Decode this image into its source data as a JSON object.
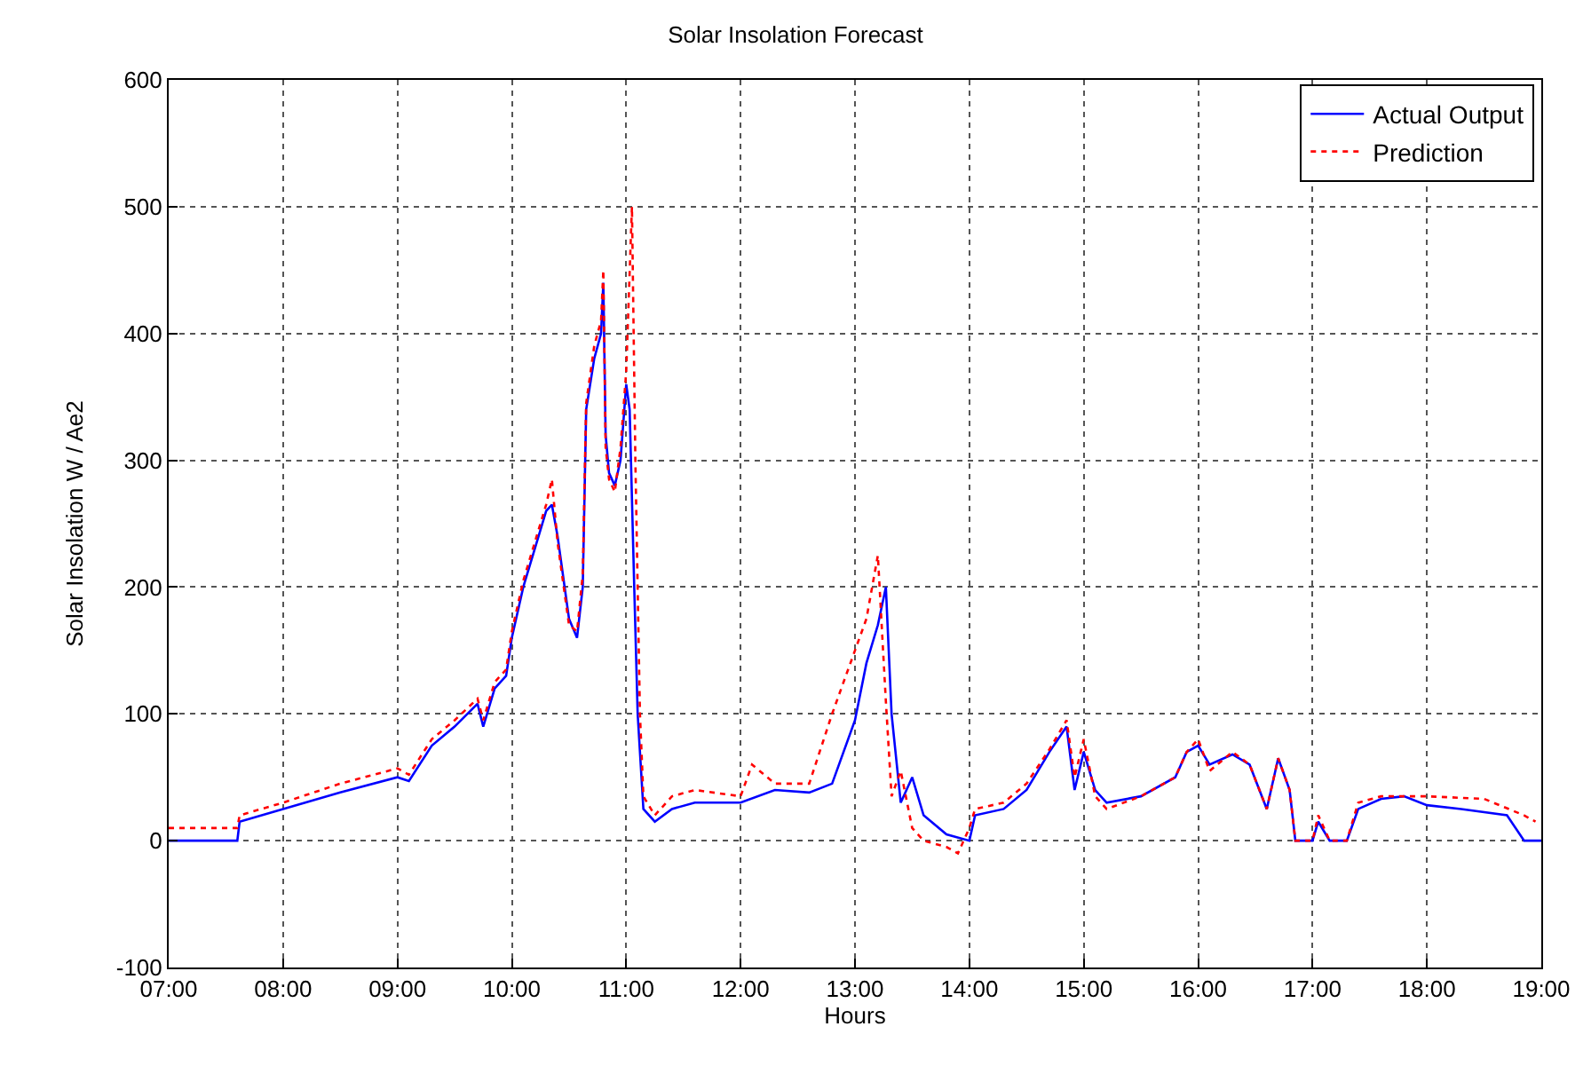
{
  "chart_data": {
    "type": "line",
    "title": "Solar Insolation Forecast",
    "xlabel": "Hours",
    "ylabel": "Solar Insolation W / Ae2",
    "xlim": [
      7,
      19
    ],
    "xticks": [
      {
        "value": 7,
        "label": "07:00"
      },
      {
        "value": 8,
        "label": "08:00"
      },
      {
        "value": 9,
        "label": "09:00"
      },
      {
        "value": 10,
        "label": "10:00"
      },
      {
        "value": 11,
        "label": "11:00"
      },
      {
        "value": 12,
        "label": "12:00"
      },
      {
        "value": 13,
        "label": "13:00"
      },
      {
        "value": 14,
        "label": "14:00"
      },
      {
        "value": 15,
        "label": "15:00"
      },
      {
        "value": 16,
        "label": "16:00"
      },
      {
        "value": 17,
        "label": "17:00"
      },
      {
        "value": 18,
        "label": "18:00"
      },
      {
        "value": 19,
        "label": "19:00"
      }
    ],
    "ylim": [
      -100,
      600
    ],
    "yticks": [
      -100,
      0,
      100,
      200,
      300,
      400,
      500,
      600
    ],
    "grid": true,
    "legend": "top right",
    "marker": "none",
    "series": [
      {
        "name": "Actual Output",
        "color": "#0000ff",
        "line_style": "solid",
        "x": [
          7.0,
          7.6,
          7.62,
          8.0,
          8.5,
          9.0,
          9.1,
          9.3,
          9.5,
          9.7,
          9.75,
          9.85,
          9.95,
          10.0,
          10.1,
          10.2,
          10.3,
          10.35,
          10.4,
          10.5,
          10.57,
          10.62,
          10.65,
          10.72,
          10.78,
          10.8,
          10.82,
          10.85,
          10.9,
          10.95,
          11.0,
          11.03,
          11.07,
          11.1,
          11.15,
          11.25,
          11.4,
          11.6,
          12.0,
          12.3,
          12.6,
          12.8,
          13.0,
          13.1,
          13.2,
          13.27,
          13.32,
          13.4,
          13.5,
          13.6,
          13.8,
          14.0,
          14.05,
          14.3,
          14.5,
          14.7,
          14.85,
          14.92,
          15.0,
          15.1,
          15.2,
          15.5,
          15.8,
          15.9,
          16.0,
          16.1,
          16.3,
          16.45,
          16.6,
          16.7,
          16.8,
          16.85,
          17.0,
          17.05,
          17.15,
          17.3,
          17.4,
          17.6,
          17.8,
          18.0,
          18.3,
          18.7,
          18.85,
          19.0
        ],
        "values": [
          0,
          0,
          15,
          25,
          38,
          50,
          47,
          75,
          90,
          108,
          90,
          120,
          130,
          160,
          200,
          230,
          260,
          265,
          240,
          175,
          160,
          200,
          340,
          380,
          400,
          440,
          320,
          290,
          280,
          300,
          360,
          340,
          200,
          100,
          25,
          15,
          25,
          30,
          30,
          40,
          38,
          45,
          95,
          140,
          170,
          200,
          100,
          30,
          50,
          20,
          5,
          0,
          20,
          25,
          40,
          70,
          90,
          40,
          70,
          40,
          30,
          35,
          50,
          70,
          75,
          60,
          68,
          60,
          25,
          65,
          40,
          0,
          0,
          15,
          0,
          0,
          25,
          33,
          35,
          28,
          25,
          20,
          0,
          0
        ]
      },
      {
        "name": "Prediction",
        "color": "#ff0000",
        "line_style": "dotted",
        "x": [
          7.0,
          7.6,
          7.62,
          8.0,
          8.5,
          9.0,
          9.1,
          9.3,
          9.5,
          9.7,
          9.75,
          9.85,
          9.95,
          10.0,
          10.1,
          10.2,
          10.3,
          10.35,
          10.4,
          10.5,
          10.57,
          10.62,
          10.65,
          10.72,
          10.78,
          10.8,
          10.82,
          10.85,
          10.9,
          10.95,
          11.0,
          11.05,
          11.08,
          11.12,
          11.15,
          11.25,
          11.4,
          11.6,
          12.0,
          12.1,
          12.3,
          12.6,
          12.8,
          13.0,
          13.1,
          13.2,
          13.27,
          13.32,
          13.4,
          13.5,
          13.6,
          13.8,
          13.9,
          14.0,
          14.05,
          14.3,
          14.5,
          14.7,
          14.85,
          14.92,
          15.0,
          15.1,
          15.2,
          15.5,
          15.8,
          15.9,
          16.0,
          16.1,
          16.3,
          16.45,
          16.6,
          16.7,
          16.8,
          16.85,
          17.0,
          17.05,
          17.15,
          17.3,
          17.4,
          17.6,
          17.8,
          18.0,
          18.5,
          18.85,
          18.95
        ],
        "values": [
          10,
          10,
          20,
          30,
          45,
          57,
          52,
          80,
          95,
          112,
          95,
          125,
          135,
          165,
          205,
          235,
          265,
          285,
          235,
          170,
          165,
          210,
          345,
          390,
          410,
          450,
          310,
          285,
          275,
          310,
          370,
          500,
          300,
          100,
          35,
          20,
          35,
          40,
          35,
          60,
          45,
          45,
          100,
          150,
          175,
          225,
          110,
          35,
          55,
          10,
          0,
          -5,
          -10,
          10,
          25,
          30,
          45,
          72,
          95,
          50,
          80,
          35,
          25,
          35,
          50,
          70,
          80,
          55,
          70,
          60,
          25,
          65,
          40,
          0,
          0,
          20,
          0,
          0,
          30,
          35,
          35,
          35,
          33,
          20,
          15
        ]
      }
    ]
  }
}
